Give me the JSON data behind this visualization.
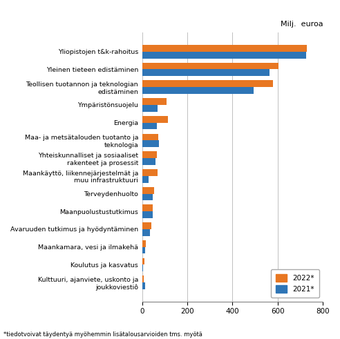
{
  "title": "Milj.  euroa",
  "categories": [
    "Yliopistojen t&k-rahoitus",
    "Yleinen tieteen edistäminen",
    "Teollisen tuotannon ja teknologian\nedistäminen",
    "Ympäristönsuojelu",
    "Energia",
    "Maa- ja metsätalouden tuotanto ja\nteknologia",
    "Yhteiskunnalliset ja sosiaaliset\nrakenteet ja prosessit",
    "Maankäyttö, liikennejärjestelmät ja\nmuu infrastruktuuri",
    "Terveydenhuolto",
    "Maanpuolustustutkimus",
    "Avaruuden tutkimus ja hyödyntäminen",
    "Maankamara, vesi ja ilmakehä",
    "Koulutus ja kasvatus",
    "Kulttuuri, ajanviete, uskonto ja\njoukkoviestiô"
  ],
  "values_2022": [
    730,
    605,
    578,
    108,
    113,
    72,
    65,
    68,
    52,
    47,
    40,
    15,
    10,
    8
  ],
  "values_2021": [
    725,
    565,
    495,
    67,
    65,
    75,
    58,
    28,
    48,
    48,
    35,
    13,
    5,
    12
  ],
  "color_2022": "#E87722",
  "color_2021": "#2E75B6",
  "xlim": [
    0,
    800
  ],
  "xticks": [
    0,
    200,
    400,
    600,
    800
  ],
  "footnote": "*tiedotvoivat täydentyä myöhemmin lisätalousarvioiden tms. myötä",
  "legend_2022": "2022*",
  "legend_2021": "2021*",
  "bar_height": 0.38,
  "bg_color": "#ffffff",
  "grid_color": "#c0c0c0"
}
